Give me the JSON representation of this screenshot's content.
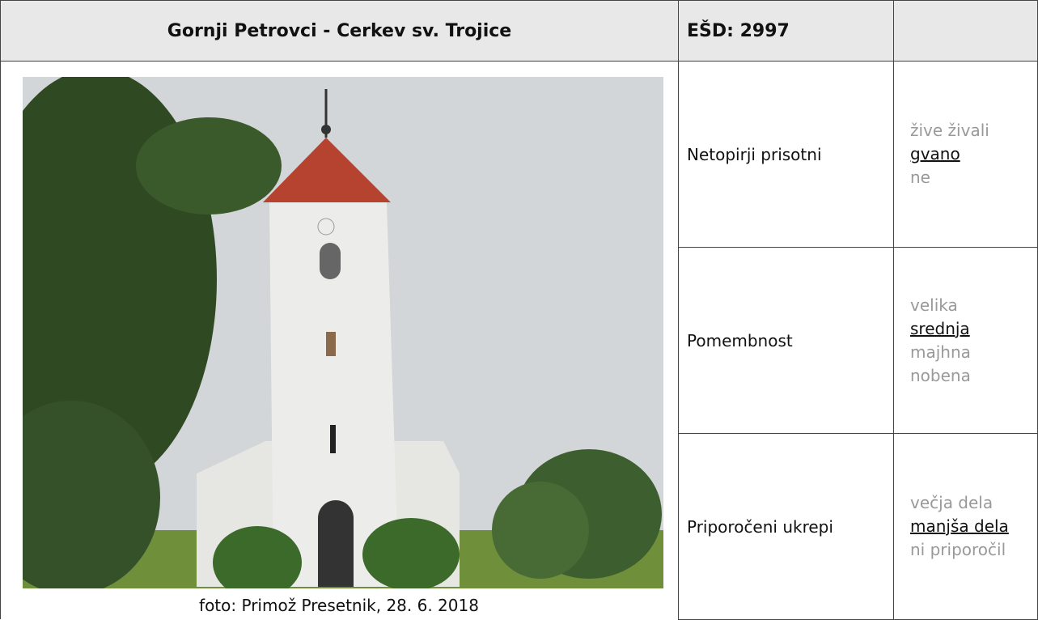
{
  "header": {
    "title": "Gornji Petrovci - Cerkev sv. Trojice",
    "id": "EŠD: 2997"
  },
  "photo": {
    "caption": "foto: Primož Presetnik, 28. 6. 2018"
  },
  "rows": [
    {
      "label": "Netopirji prisotni",
      "options": [
        {
          "text": "žive živali",
          "selected": false
        },
        {
          "text": "gvano",
          "selected": true
        },
        {
          "text": "ne",
          "selected": false
        }
      ]
    },
    {
      "label": "Pomembnost",
      "options": [
        {
          "text": "velika",
          "selected": false
        },
        {
          "text": "srednja",
          "selected": true
        },
        {
          "text": "majhna",
          "selected": false
        },
        {
          "text": "nobena",
          "selected": false
        }
      ]
    },
    {
      "label": "Priporočeni ukrepi",
      "options": [
        {
          "text": "večja dela",
          "selected": false
        },
        {
          "text": "manjša dela",
          "selected": true
        },
        {
          "text": "ni priporočil",
          "selected": false
        }
      ]
    }
  ]
}
